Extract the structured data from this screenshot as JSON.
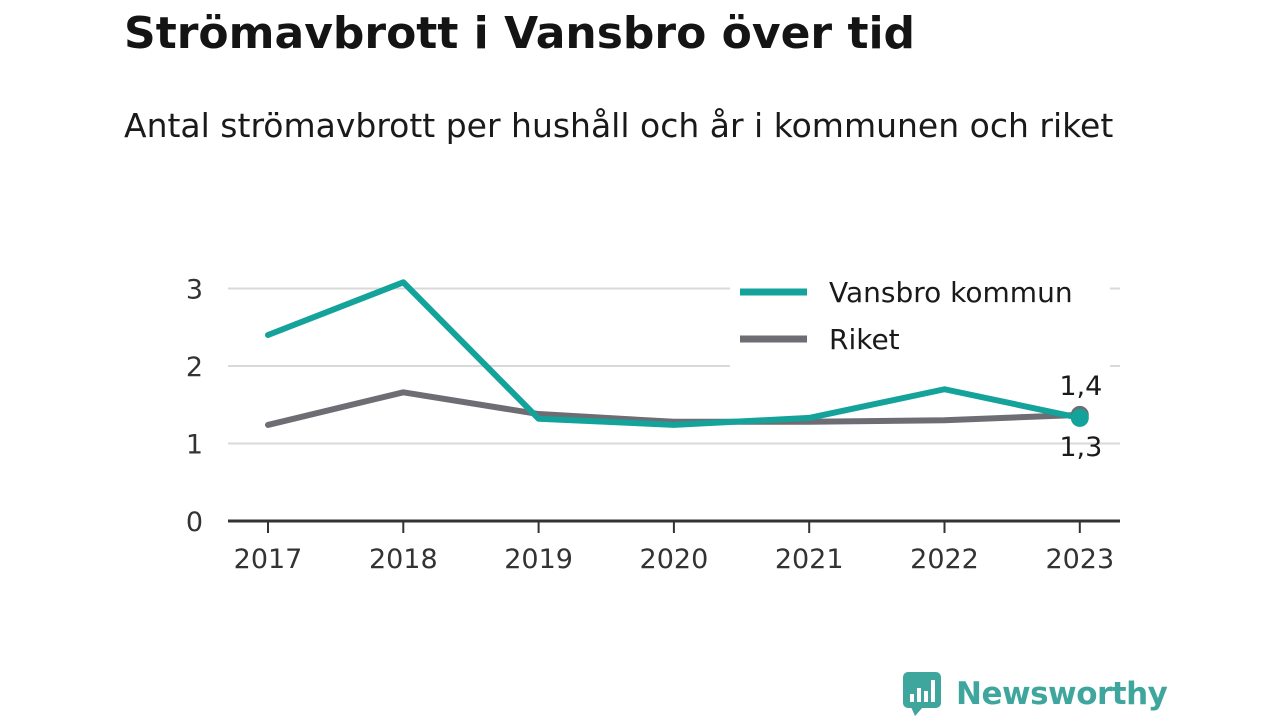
{
  "chart_data": {
    "type": "line",
    "title": "Strömavbrott i Vansbro över tid",
    "subtitle": "Antal strömavbrott per hushåll och år i kommunen och riket",
    "x": [
      "2017",
      "2018",
      "2019",
      "2020",
      "2021",
      "2022",
      "2023"
    ],
    "yticks": [
      "0",
      "1",
      "2",
      "3"
    ],
    "ylim": [
      0,
      3.3
    ],
    "grid": true,
    "legend_position": "top-right",
    "series": [
      {
        "name": "Vansbro kommun",
        "color": "#14a39a",
        "values": [
          2.4,
          3.08,
          1.32,
          1.24,
          1.33,
          1.7,
          1.33
        ]
      },
      {
        "name": "Riket",
        "color": "#6e6d74",
        "values": [
          1.24,
          1.66,
          1.38,
          1.28,
          1.28,
          1.3,
          1.37
        ]
      }
    ],
    "end_labels": [
      {
        "series": "Riket",
        "text": "1,4"
      },
      {
        "series": "Vansbro kommun",
        "text": "1,3"
      }
    ]
  },
  "brand": {
    "name": "Newsworthy",
    "icon": "newsworthy-logo-icon",
    "color": "#3fa69e"
  }
}
